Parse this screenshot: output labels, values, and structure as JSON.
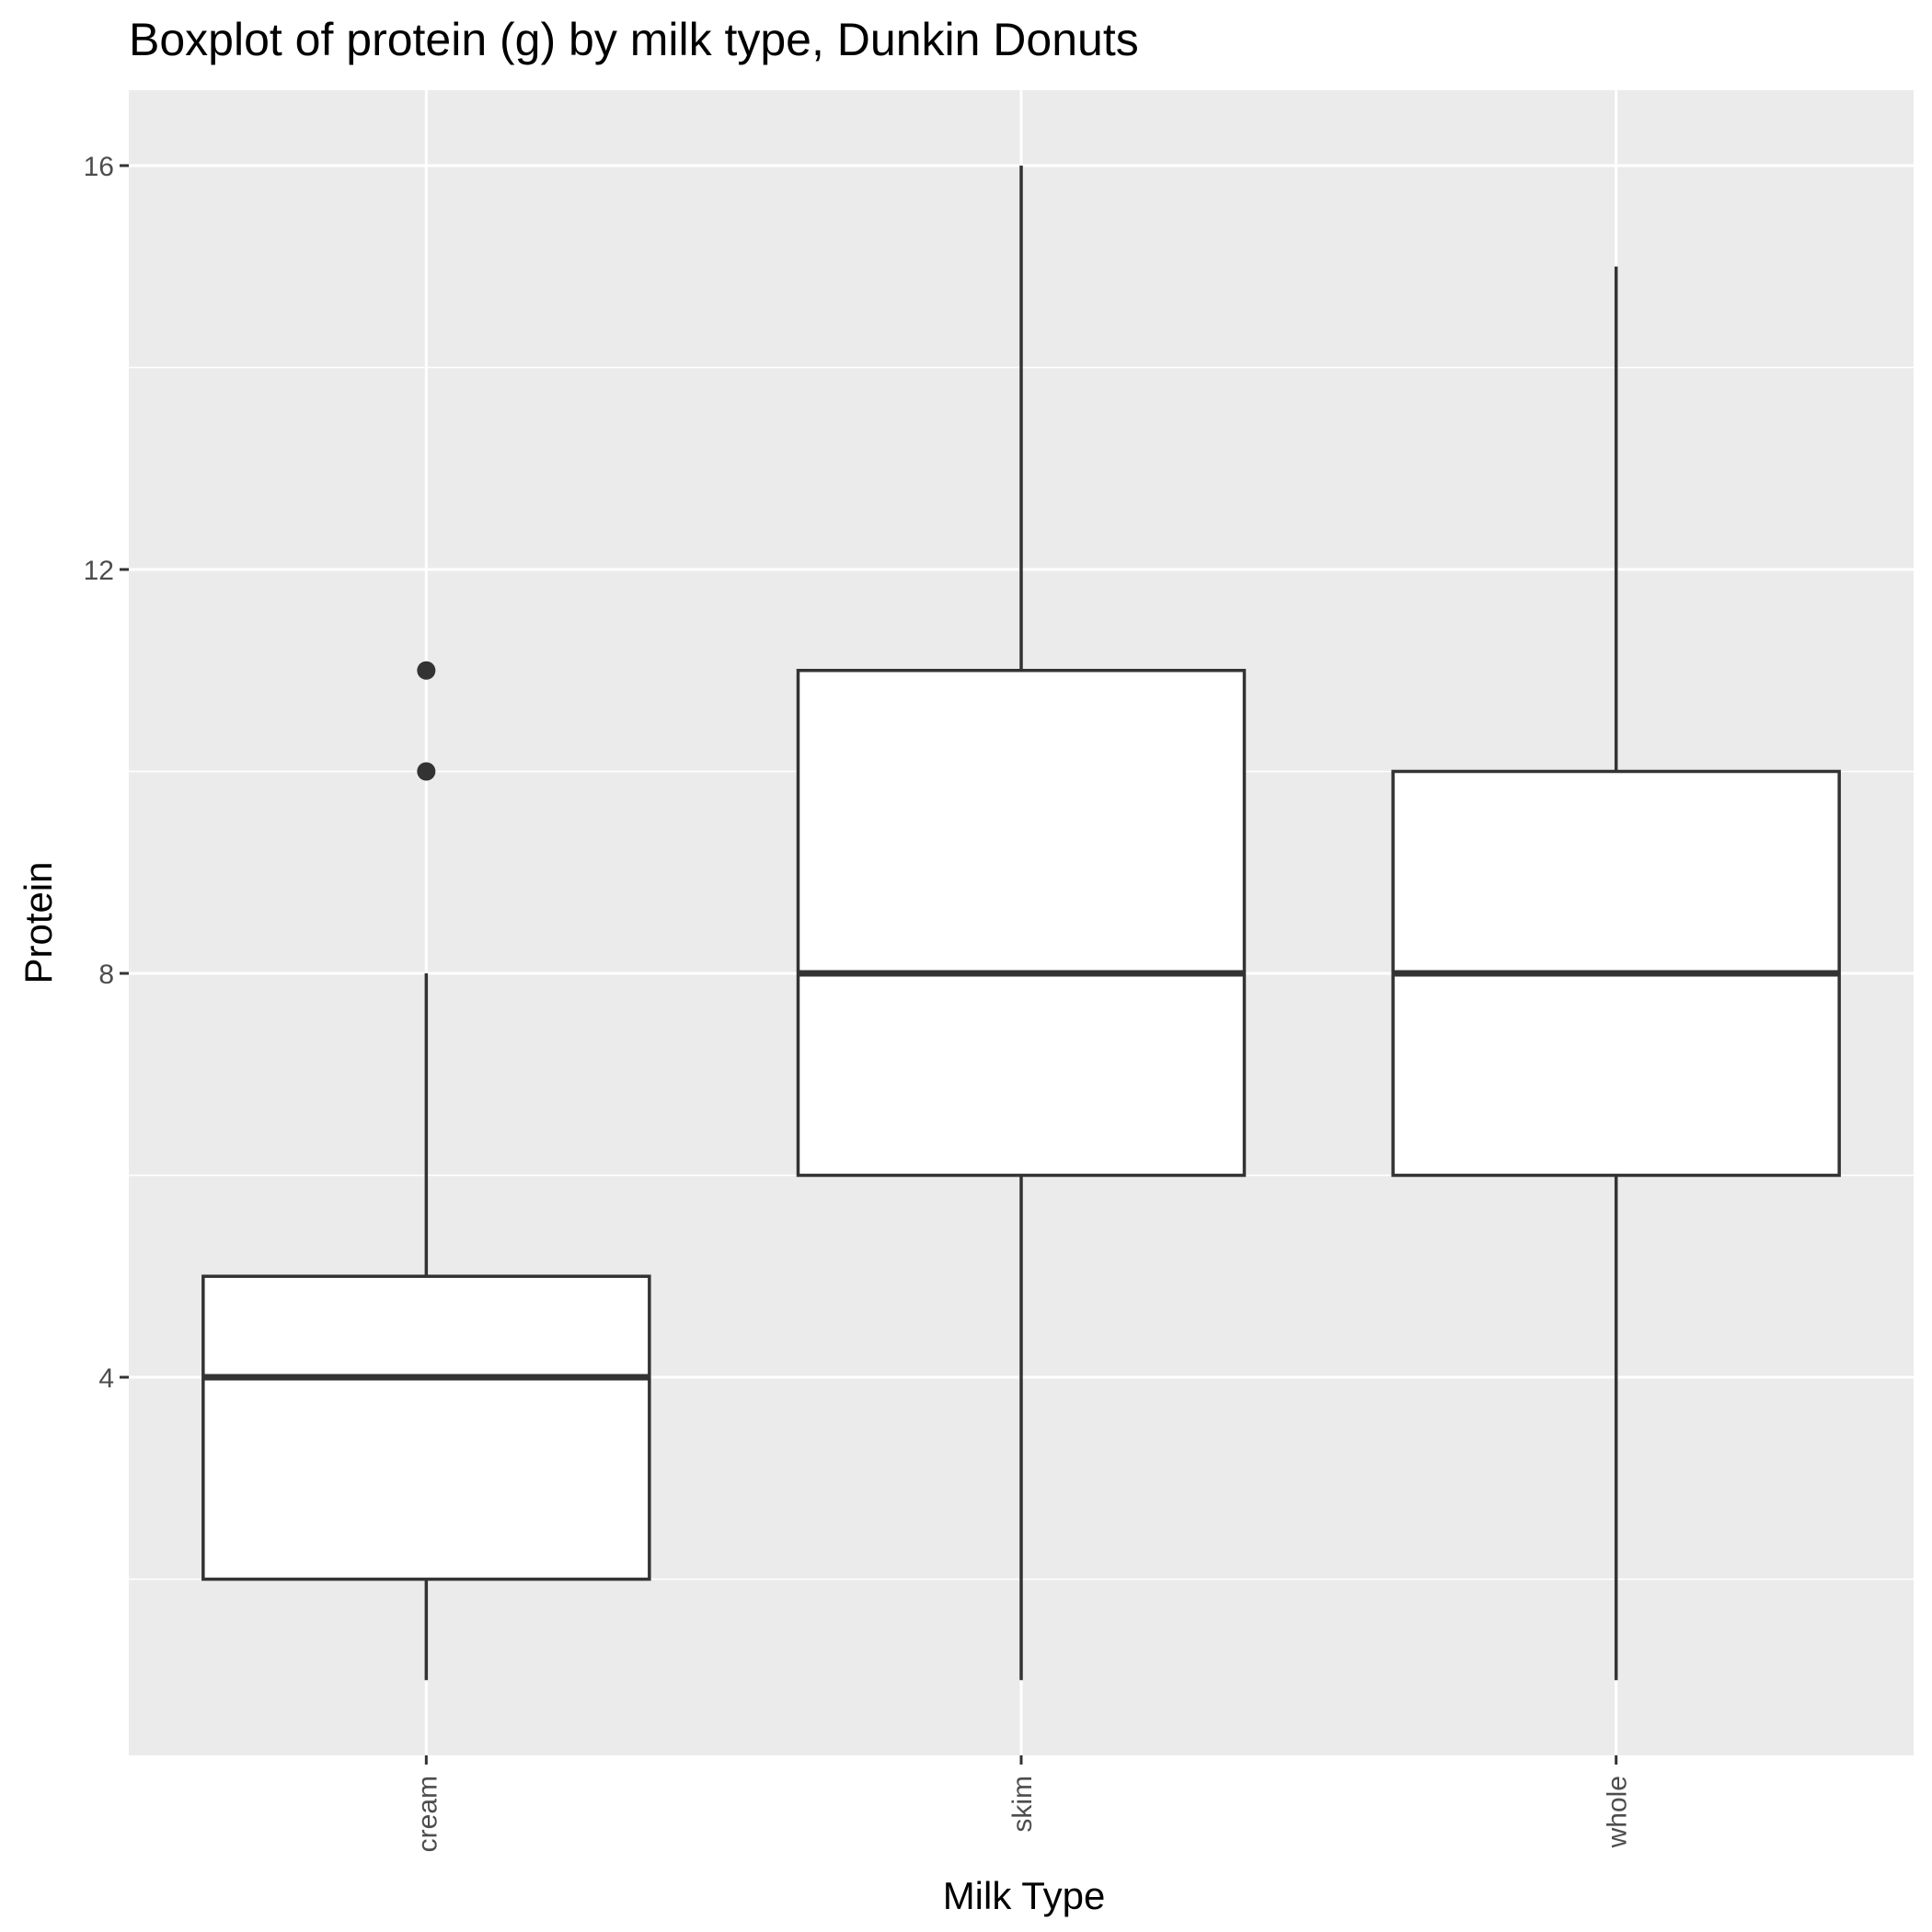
{
  "chart_data": {
    "type": "boxplot",
    "title": "Boxplot of protein (g) by milk type, Dunkin Donuts",
    "xlabel": "Milk Type",
    "ylabel": "Protein",
    "categories": [
      "cream",
      "skim",
      "whole"
    ],
    "boxes": [
      {
        "category": "cream",
        "min": 1,
        "q1": 2,
        "median": 4,
        "q3": 5,
        "max": 8,
        "outliers": [
          10,
          11
        ]
      },
      {
        "category": "skim",
        "min": 1,
        "q1": 6,
        "median": 8,
        "q3": 11,
        "max": 16,
        "outliers": []
      },
      {
        "category": "whole",
        "min": 1,
        "q1": 6,
        "median": 8,
        "q3": 10,
        "max": 15,
        "outliers": []
      }
    ],
    "y_ticks": [
      4,
      8,
      12,
      16
    ],
    "y_tick_labels": [
      "4",
      "8",
      "12",
      "16"
    ],
    "ylim": [
      0.25,
      16.75
    ],
    "grid": true,
    "colors": {
      "panel_background": "#ebebeb",
      "grid_major": "#ffffff",
      "box_fill": "#ffffff",
      "box_line": "#333333",
      "tick_text": "#4d4d4d"
    }
  }
}
